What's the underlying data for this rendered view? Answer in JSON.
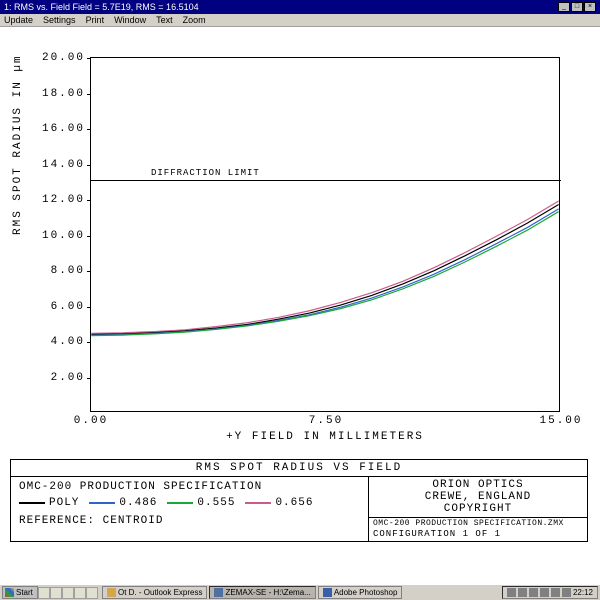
{
  "window": {
    "title": "1: RMS vs. Field Field = 5.7E19, RMS = 16.5104",
    "menus": [
      "Update",
      "Settings",
      "Print",
      "Window",
      "Text",
      "Zoom"
    ]
  },
  "chart": {
    "type": "line",
    "title": "RMS SPOT RADIUS VS FIELD",
    "xlabel": "+Y FIELD IN MILLIMETERS",
    "ylabel": "RMS SPOT RADIUS IN µm",
    "xlim": [
      0,
      15
    ],
    "ylim": [
      0,
      20
    ],
    "xticks": [
      0.0,
      7.5,
      15.0
    ],
    "xtick_labels": [
      "0.00",
      "7.50",
      "15.00"
    ],
    "yticks": [
      2,
      4,
      6,
      8,
      10,
      12,
      14,
      16,
      18,
      20
    ],
    "ytick_labels": [
      "2.00",
      "4.00",
      "6.00",
      "8.00",
      "10.00",
      "12.00",
      "14.00",
      "16.00",
      "18.00",
      "20.00"
    ],
    "diffraction_limit_value": 13.1,
    "diffraction_label": "DIFFRACTION LIMIT",
    "background_color": "#ffffff",
    "axis_color": "#000000",
    "tick_fontsize": 11,
    "label_fontsize": 11,
    "font_family": "Courier New",
    "line_width": 1.2,
    "series": [
      {
        "name": "POLY",
        "color": "#000000",
        "x": [
          0,
          1,
          2,
          3,
          4,
          5,
          6,
          7,
          8,
          9,
          10,
          11,
          12,
          13,
          14,
          15
        ],
        "y": [
          4.35,
          4.38,
          4.45,
          4.55,
          4.7,
          4.9,
          5.2,
          5.55,
          6.0,
          6.55,
          7.2,
          7.95,
          8.8,
          9.7,
          10.65,
          11.7
        ]
      },
      {
        "name": "0.486",
        "color": "#2e66c7",
        "x": [
          0,
          1,
          2,
          3,
          4,
          5,
          6,
          7,
          8,
          9,
          10,
          11,
          12,
          13,
          14,
          15
        ],
        "y": [
          4.3,
          4.33,
          4.4,
          4.5,
          4.65,
          4.85,
          5.13,
          5.45,
          5.88,
          6.4,
          7.03,
          7.75,
          8.58,
          9.48,
          10.4,
          11.45
        ]
      },
      {
        "name": "0.555",
        "color": "#1aa838",
        "x": [
          0,
          1,
          2,
          3,
          4,
          5,
          6,
          7,
          8,
          9,
          10,
          11,
          12,
          13,
          14,
          15
        ],
        "y": [
          4.27,
          4.3,
          4.37,
          4.47,
          4.62,
          4.82,
          5.08,
          5.4,
          5.8,
          6.3,
          6.92,
          7.63,
          8.45,
          9.33,
          10.25,
          11.3
        ]
      },
      {
        "name": "0.656",
        "color": "#c95c8a",
        "x": [
          0,
          1,
          2,
          3,
          4,
          5,
          6,
          7,
          8,
          9,
          10,
          11,
          12,
          13,
          14,
          15
        ],
        "y": [
          4.4,
          4.43,
          4.5,
          4.6,
          4.78,
          5.0,
          5.3,
          5.68,
          6.15,
          6.7,
          7.35,
          8.12,
          8.98,
          9.9,
          10.85,
          11.9
        ]
      }
    ]
  },
  "legend": {
    "items": [
      {
        "label": "POLY",
        "color": "#000000"
      },
      {
        "label": "0.486",
        "color": "#2e66c7"
      },
      {
        "label": "0.555",
        "color": "#1aa838"
      },
      {
        "label": "0.656",
        "color": "#c95c8a"
      }
    ]
  },
  "spec": {
    "left_title": "OMC-200 PRODUCTION SPECIFICATION",
    "reference": "REFERENCE: CENTROID",
    "company": "ORION OPTICS",
    "location": "CREWE, ENGLAND",
    "copyright": "COPYRIGHT",
    "file": "OMC-200 PRODUCTION SPECIFICATION.ZMX",
    "config": "CONFIGURATION 1 OF 1"
  },
  "taskbar": {
    "start": "Start",
    "apps": [
      {
        "label": "Ot D. - Outlook Express",
        "color": "#d4a84a",
        "active": false
      },
      {
        "label": "ZEMAX-SE - H:\\Zema...",
        "color": "#5070a0",
        "active": true
      },
      {
        "label": "Adobe Photoshop",
        "color": "#3a5fa8",
        "active": false
      }
    ],
    "clock": "22:12",
    "tray_icons": 6
  }
}
